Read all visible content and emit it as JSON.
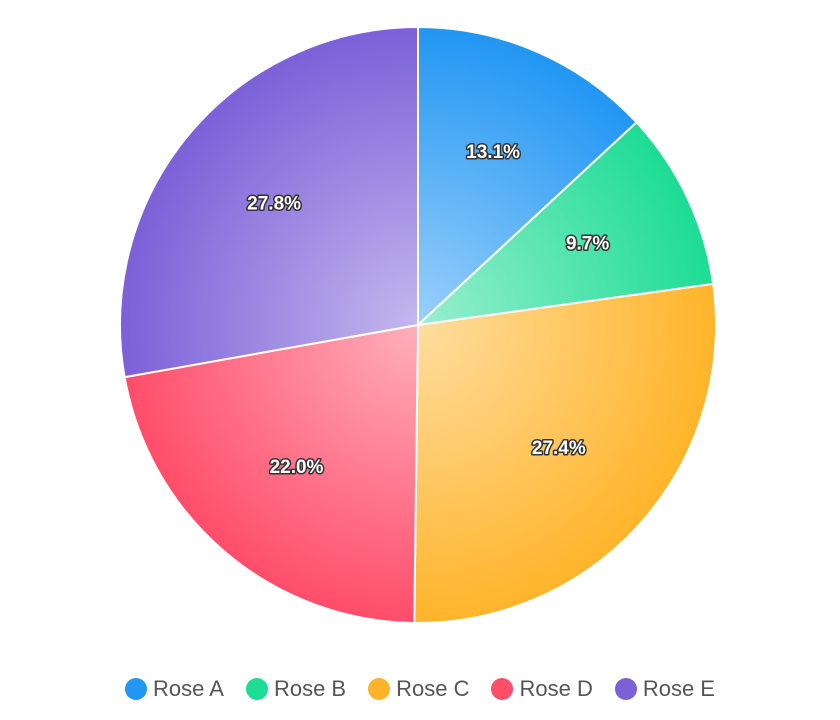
{
  "chart_data": {
    "type": "pie",
    "title": "",
    "categories": [
      "Rose A",
      "Rose B",
      "Rose C",
      "Rose D",
      "Rose E"
    ],
    "values": [
      13.1,
      9.7,
      27.4,
      22.0,
      27.8
    ],
    "labels": [
      "13.1%",
      "9.7%",
      "27.4%",
      "22.0%",
      "27.8%"
    ],
    "colors": [
      "#2196f3",
      "#1ddc94",
      "#ffb42a",
      "#ff4d6a",
      "#7b60d8"
    ],
    "start_angle": "12 o'clock",
    "direction": "clockwise",
    "legend_position": "bottom"
  }
}
